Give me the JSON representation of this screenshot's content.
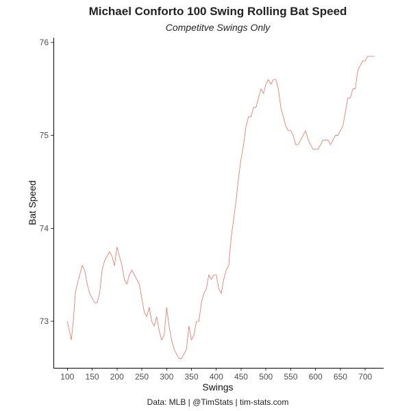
{
  "chart_data": {
    "type": "line",
    "title": "Michael Conforto 100 Swing Rolling Bat Speed",
    "subtitle": "Competitve Swings Only",
    "xlabel": "Swings",
    "ylabel": "Bat Speed",
    "caption": "Data: MLB | @TimStats | tim-stats.com",
    "xlim": [
      72,
      737
    ],
    "ylim": [
      72.5,
      76.05
    ],
    "x_ticks": [
      100,
      150,
      200,
      250,
      300,
      350,
      400,
      450,
      500,
      550,
      600,
      650,
      700
    ],
    "x_tick_labels": [
      "100",
      "150",
      "200",
      "250",
      "300",
      "350",
      "400",
      "450",
      "500",
      "550",
      "600",
      "650",
      "700"
    ],
    "y_ticks": [
      73,
      74,
      75,
      76
    ],
    "y_tick_labels": [
      "73",
      "74",
      "75",
      "76"
    ],
    "grid": false,
    "legend": "none",
    "colors": {
      "line": "#E8705F",
      "axis": "#000000",
      "text": "#222222"
    },
    "series": [
      {
        "x": [
          100,
          104,
          108,
          112,
          116,
          120,
          125,
          130,
          135,
          140,
          145,
          150,
          155,
          160,
          165,
          170,
          175,
          180,
          185,
          190,
          195,
          200,
          205,
          210,
          215,
          220,
          225,
          230,
          235,
          240,
          245,
          250,
          255,
          260,
          265,
          270,
          275,
          280,
          285,
          290,
          295,
          300,
          305,
          310,
          315,
          320,
          325,
          330,
          335,
          340,
          345,
          350,
          355,
          360,
          365,
          370,
          375,
          380,
          385,
          390,
          395,
          400,
          405,
          410,
          415,
          420,
          425,
          430,
          435,
          440,
          445,
          450,
          455,
          460,
          465,
          470,
          475,
          480,
          485,
          490,
          495,
          500,
          505,
          510,
          515,
          520,
          525,
          530,
          535,
          540,
          545,
          550,
          555,
          560,
          565,
          570,
          575,
          580,
          585,
          590,
          595,
          600,
          605,
          610,
          615,
          620,
          625,
          630,
          635,
          640,
          645,
          650,
          655,
          660,
          665,
          670,
          675,
          680,
          685,
          690,
          695,
          700,
          705,
          710,
          715,
          718
        ],
        "values": [
          73.0,
          72.9,
          72.8,
          73.0,
          73.3,
          73.4,
          73.5,
          73.6,
          73.55,
          73.4,
          73.3,
          73.25,
          73.2,
          73.2,
          73.3,
          73.55,
          73.65,
          73.7,
          73.75,
          73.7,
          73.6,
          73.8,
          73.7,
          73.6,
          73.45,
          73.4,
          73.5,
          73.55,
          73.5,
          73.45,
          73.4,
          73.25,
          73.1,
          73.05,
          73.15,
          73.0,
          72.95,
          73.05,
          72.9,
          72.8,
          72.85,
          73.15,
          72.95,
          72.8,
          72.7,
          72.65,
          72.6,
          72.6,
          72.65,
          72.7,
          72.95,
          72.8,
          72.85,
          73.0,
          73.0,
          73.2,
          73.3,
          73.35,
          73.5,
          73.45,
          73.5,
          73.5,
          73.35,
          73.3,
          73.45,
          73.55,
          73.6,
          73.9,
          74.1,
          74.3,
          74.55,
          74.75,
          74.9,
          75.1,
          75.2,
          75.2,
          75.3,
          75.3,
          75.4,
          75.5,
          75.45,
          75.55,
          75.6,
          75.55,
          75.6,
          75.6,
          75.5,
          75.3,
          75.2,
          75.1,
          75.05,
          75.05,
          75.0,
          74.9,
          74.9,
          74.95,
          75.0,
          75.05,
          74.95,
          74.9,
          74.85,
          74.85,
          74.85,
          74.9,
          74.95,
          74.95,
          74.95,
          74.9,
          74.95,
          75.0,
          75.0,
          75.05,
          75.1,
          75.25,
          75.4,
          75.4,
          75.5,
          75.5,
          75.7,
          75.75,
          75.8,
          75.8,
          75.85,
          75.85,
          75.85,
          75.85
        ]
      }
    ]
  }
}
